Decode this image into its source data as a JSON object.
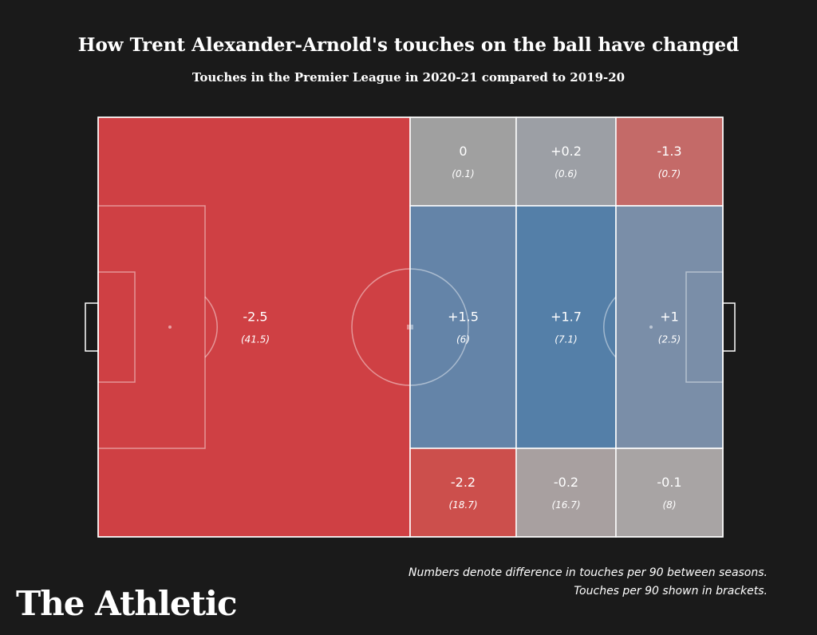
{
  "chart_data": {
    "type": "heatmap",
    "title": "How Trent Alexander-Arnold's touches on the ball have changed",
    "subtitle": "Touches in the Premier League in 2020-21 compared to 2019-20",
    "values": [
      -2.5,
      0,
      0.2,
      -1.3,
      1.5,
      1.7,
      1,
      -2.2,
      -0.2,
      -0.1
    ],
    "value_labels": [
      "-2.5",
      "0",
      "+0.2",
      "-1.3",
      "+1.5",
      "+1.7",
      "+1",
      "-2.2",
      "-0.2",
      "-0.1"
    ],
    "touches": [
      41.5,
      0.1,
      0.6,
      0.7,
      6,
      7.1,
      2.5,
      18.7,
      16.7,
      8
    ],
    "touch_labels": [
      "(41.5)",
      "(0.1)",
      "(0.6)",
      "(0.7)",
      "(6)",
      "(7.1)",
      "(2.5)",
      "(18.7)",
      "(16.7)",
      "(8)"
    ],
    "colors": [
      "#cf4044",
      "#a0a0a0",
      "#9c9fa5",
      "#c46a68",
      "#6484a8",
      "#547fa8",
      "#7a8ea8",
      "#cc4f4c",
      "#a8a0a0",
      "#a8a4a4"
    ],
    "notes": [
      "Numbers denote difference in touches per 90 between seasons.",
      "Touches per 90 shown in brackets."
    ],
    "brand": "The Athletic"
  }
}
